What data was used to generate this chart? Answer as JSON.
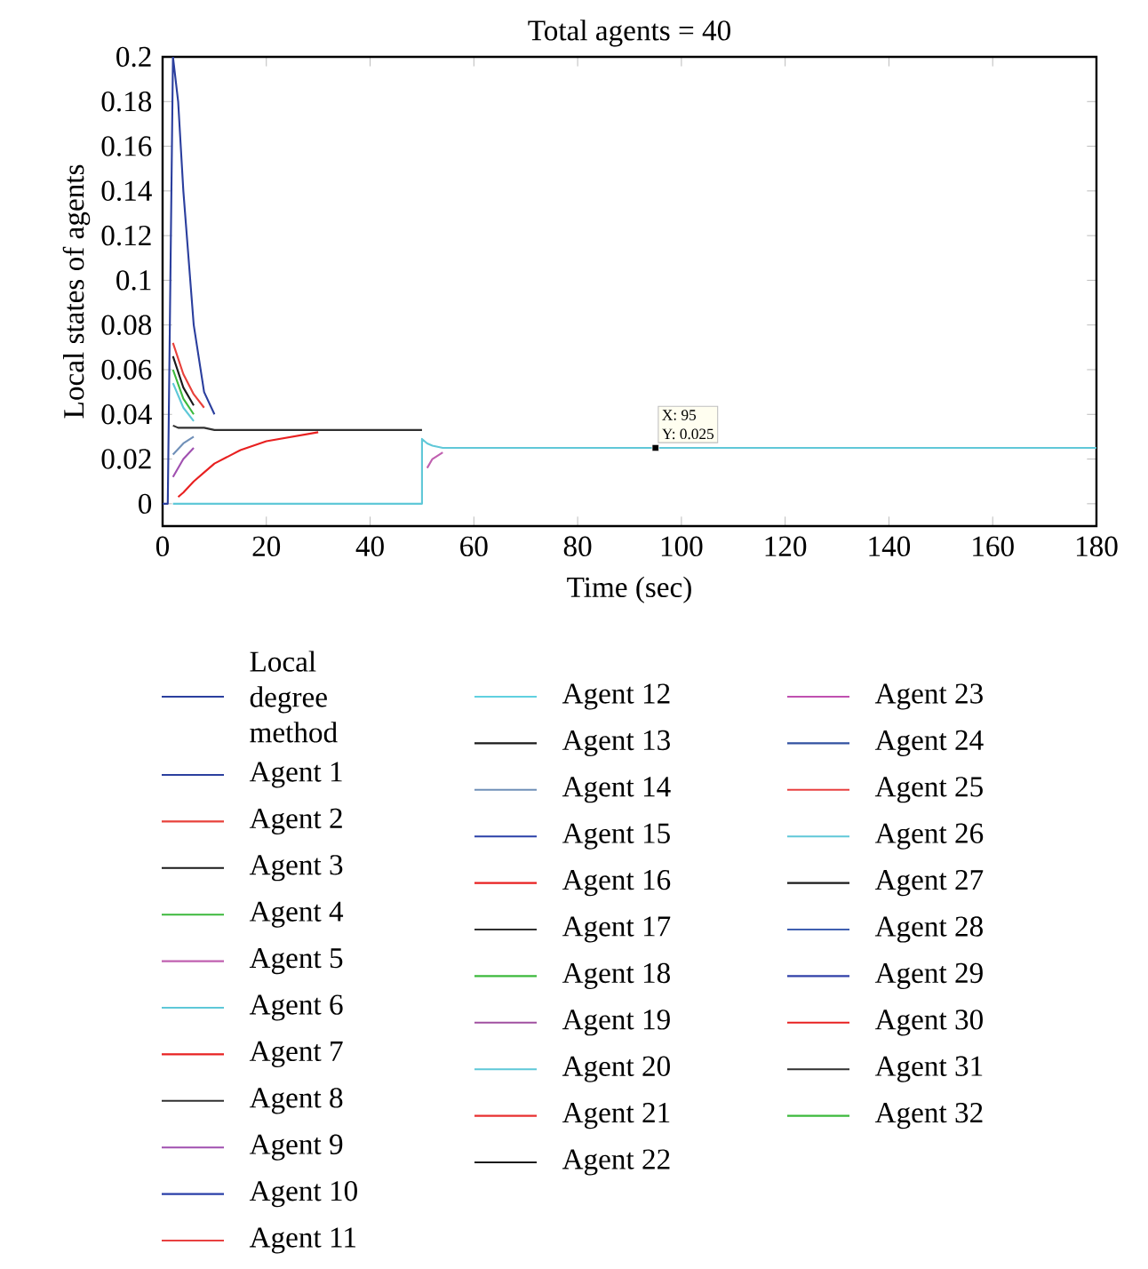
{
  "chart_data": {
    "type": "line",
    "title": "Total agents = 40",
    "xlabel": "Time (sec)",
    "ylabel": "Local states of agents",
    "xlim": [
      0,
      180
    ],
    "xticks": [
      0,
      20,
      40,
      60,
      80,
      100,
      120,
      140,
      160,
      180
    ],
    "ylim": [
      -0.01,
      0.2
    ],
    "yticks": [
      0,
      0.02,
      0.04,
      0.06,
      0.08,
      0.1,
      0.12,
      0.14,
      0.16,
      0.18,
      0.2
    ],
    "legend": "bottom",
    "marker": "none",
    "line_style": "solid",
    "annotations": [
      {
        "text": "X: 95",
        "x": 95,
        "y": 0.025
      },
      {
        "text": "Y: 0.025",
        "x": 95,
        "y": 0.025
      }
    ],
    "x": [
      0,
      1,
      2,
      3,
      4,
      6,
      8,
      10,
      15,
      20,
      30,
      40,
      50,
      50,
      51,
      52,
      54,
      57,
      60,
      100,
      180
    ],
    "series": [
      {
        "name": "Local degree method",
        "color": "#2b3f9e",
        "values": [
          0,
          0,
          0.2,
          0.18,
          0.14,
          0.08,
          0.05,
          0.04,
          null,
          null,
          null,
          null,
          null,
          null,
          null,
          null,
          null,
          null,
          null,
          null,
          null
        ]
      },
      {
        "name": "Agent 1",
        "color": "#2b3f9e",
        "values": [
          null,
          null,
          null,
          null,
          null,
          null,
          null,
          null,
          null,
          null,
          null,
          null,
          null,
          null,
          null,
          null,
          null,
          null,
          null,
          null,
          null
        ]
      },
      {
        "name": "Agent 2",
        "color": "#e8403a",
        "x": [
          2,
          4,
          6,
          8
        ],
        "values": [
          0.072,
          0.058,
          0.049,
          0.043
        ]
      },
      {
        "name": "Agent 3",
        "color": "#1a1a1a",
        "x": [
          2,
          4,
          6
        ],
        "values": [
          0.066,
          0.052,
          0.044
        ]
      },
      {
        "name": "Agent 4",
        "color": "#3cb93c",
        "x": [
          2,
          4,
          6
        ],
        "values": [
          0.06,
          0.047,
          0.04
        ]
      },
      {
        "name": "Agent 5",
        "color": "#c060b0",
        "x": [
          51,
          52,
          54
        ],
        "values": [
          0.016,
          0.02,
          0.023
        ]
      },
      {
        "name": "Agent 6",
        "color": "#5ec8d8",
        "x": [
          2,
          4,
          6
        ],
        "values": [
          0.054,
          0.043,
          0.037
        ]
      },
      {
        "name": "Agent 7",
        "color": "#e82020",
        "values": [
          null,
          null,
          null,
          null,
          null,
          null,
          null,
          null,
          null,
          null,
          null,
          null,
          null,
          null,
          null,
          null,
          null,
          null,
          null,
          null,
          null
        ]
      },
      {
        "name": "Agent 8",
        "color": "#303030",
        "values": [
          null,
          null,
          null,
          null,
          null,
          null,
          null,
          null,
          null,
          null,
          null,
          null,
          null,
          null,
          null,
          null,
          null,
          null,
          null,
          null,
          null
        ]
      },
      {
        "name": "Agent 9",
        "color": "#a050b0",
        "x": [
          2,
          4,
          6
        ],
        "values": [
          0.012,
          0.02,
          0.025
        ]
      },
      {
        "name": "Agent 10",
        "color": "#2a3fa8",
        "values": [
          null,
          null,
          null,
          null,
          null,
          null,
          null,
          null,
          null,
          null,
          null,
          null,
          null,
          null,
          null,
          null,
          null,
          null,
          null,
          null,
          null
        ]
      },
      {
        "name": "Agent 11",
        "color": "#e84040",
        "values": [
          null,
          null,
          null,
          null,
          null,
          null,
          null,
          null,
          null,
          null,
          null,
          null,
          null,
          null,
          null,
          null,
          null,
          null,
          null,
          null,
          null
        ]
      },
      {
        "name": "Agent 12",
        "color": "#60d0e0",
        "values": [
          null,
          null,
          null,
          null,
          null,
          null,
          null,
          null,
          null,
          null,
          null,
          null,
          null,
          null,
          null,
          null,
          null,
          null,
          null,
          null,
          null
        ]
      },
      {
        "name": "Agent 13",
        "color": "#1a1a1a",
        "values": [
          null,
          null,
          null,
          null,
          null,
          null,
          null,
          null,
          null,
          null,
          null,
          null,
          null,
          null,
          null,
          null,
          null,
          null,
          null,
          null,
          null
        ]
      },
      {
        "name": "Agent 14",
        "color": "#7090b8",
        "x": [
          2,
          4,
          6
        ],
        "values": [
          0.022,
          0.027,
          0.03
        ]
      },
      {
        "name": "Agent 15",
        "color": "#2a40a8",
        "values": [
          null,
          null,
          null,
          null,
          null,
          null,
          null,
          null,
          null,
          null,
          null,
          null,
          null,
          null,
          null,
          null,
          null,
          null,
          null,
          null,
          null
        ]
      },
      {
        "name": "Agent 16",
        "color": "#e82020",
        "values": [
          null,
          null,
          null,
          null,
          null,
          null,
          null,
          null,
          null,
          null,
          null,
          null,
          null,
          null,
          null,
          null,
          null,
          null,
          null,
          null,
          null
        ]
      },
      {
        "name": "Agent 17",
        "color": "#303030",
        "values": [
          null,
          null,
          null,
          null,
          null,
          null,
          null,
          null,
          null,
          null,
          null,
          null,
          null,
          null,
          null,
          null,
          null,
          null,
          null,
          null,
          null
        ]
      },
      {
        "name": "Agent 18",
        "color": "#3cb93c",
        "values": [
          null,
          null,
          null,
          null,
          null,
          null,
          null,
          null,
          null,
          null,
          null,
          null,
          null,
          null,
          null,
          null,
          null,
          null,
          null,
          null,
          null
        ]
      },
      {
        "name": "Agent 19",
        "color": "#a050a0",
        "values": [
          null,
          null,
          null,
          null,
          null,
          null,
          null,
          null,
          null,
          null,
          null,
          null,
          null,
          null,
          null,
          null,
          null,
          null,
          null,
          null,
          null
        ]
      },
      {
        "name": "Agent 20",
        "color": "#5ec8d8",
        "values": [
          null,
          null,
          null,
          null,
          null,
          null,
          null,
          null,
          null,
          null,
          null,
          null,
          null,
          null,
          null,
          null,
          null,
          null,
          null,
          null,
          null
        ]
      },
      {
        "name": "Agent 21",
        "color": "#e83030",
        "values": [
          null,
          null,
          null,
          null,
          null,
          null,
          null,
          null,
          null,
          null,
          null,
          null,
          null,
          null,
          null,
          null,
          null,
          null,
          null,
          null,
          null
        ]
      },
      {
        "name": "Agent 22",
        "color": "#1a1a1a",
        "values": [
          null,
          null,
          null,
          null,
          null,
          null,
          null,
          null,
          null,
          null,
          null,
          null,
          null,
          null,
          null,
          null,
          null,
          null,
          null,
          null,
          null
        ]
      },
      {
        "name": "Agent 23",
        "color": "#c050b0",
        "values": [
          null,
          null,
          null,
          null,
          null,
          null,
          null,
          null,
          null,
          null,
          null,
          null,
          null,
          null,
          null,
          null,
          null,
          null,
          null,
          null,
          null
        ]
      },
      {
        "name": "Agent 24",
        "color": "#3050a0",
        "values": [
          null,
          null,
          null,
          null,
          null,
          null,
          null,
          null,
          null,
          null,
          null,
          null,
          null,
          null,
          null,
          null,
          null,
          null,
          null,
          null,
          null
        ]
      },
      {
        "name": "Agent 25",
        "color": "#e84040",
        "values": [
          null,
          null,
          null,
          null,
          null,
          null,
          null,
          null,
          null,
          null,
          null,
          null,
          null,
          null,
          null,
          null,
          null,
          null,
          null,
          null,
          null
        ]
      },
      {
        "name": "Agent 26",
        "color": "#60c8d8",
        "values": [
          null,
          null,
          0,
          0,
          0,
          0,
          0,
          0,
          0,
          0,
          0,
          0,
          0,
          0.029,
          0.027,
          0.026,
          0.025,
          0.025,
          0.025,
          0.025,
          0.025
        ]
      },
      {
        "name": "Agent 27",
        "color": "#1a1a1a",
        "values": [
          null,
          null,
          null,
          null,
          null,
          null,
          null,
          null,
          null,
          null,
          null,
          null,
          null,
          null,
          null,
          null,
          null,
          null,
          null,
          null,
          null
        ]
      },
      {
        "name": "Agent 28",
        "color": "#4060b0",
        "values": [
          null,
          null,
          null,
          null,
          null,
          null,
          null,
          null,
          null,
          null,
          null,
          null,
          null,
          null,
          null,
          null,
          null,
          null,
          null,
          null,
          null
        ]
      },
      {
        "name": "Agent 29",
        "color": "#3040a8",
        "values": [
          null,
          null,
          null,
          null,
          null,
          null,
          null,
          null,
          null,
          null,
          null,
          null,
          null,
          null,
          null,
          null,
          null,
          null,
          null,
          null,
          null
        ]
      },
      {
        "name": "Agent 30",
        "color": "#e82020",
        "values": [
          null,
          null,
          null,
          0.003,
          0.005,
          0.01,
          0.014,
          0.018,
          0.024,
          0.028,
          0.032,
          null,
          null,
          null,
          null,
          null,
          null,
          null,
          null,
          null,
          null
        ]
      },
      {
        "name": "Agent 31",
        "color": "#303030",
        "values": [
          null,
          null,
          0.035,
          0.034,
          0.034,
          0.034,
          0.034,
          0.033,
          0.033,
          0.033,
          0.033,
          0.033,
          0.033,
          null,
          null,
          null,
          null,
          null,
          null,
          null,
          null
        ]
      },
      {
        "name": "Agent 32",
        "color": "#3cb93c",
        "values": [
          null,
          null,
          null,
          null,
          null,
          null,
          null,
          null,
          null,
          null,
          null,
          null,
          null,
          null,
          null,
          null,
          null,
          null,
          null,
          null,
          null
        ]
      }
    ]
  }
}
